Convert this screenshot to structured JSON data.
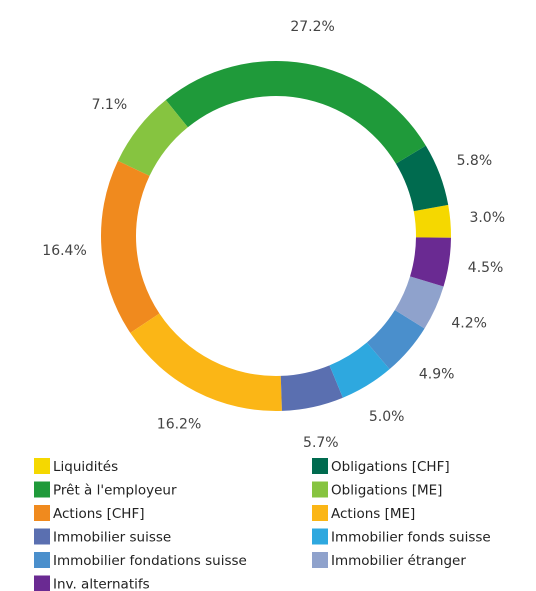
{
  "chart_data": {
    "type": "pie",
    "donut": true,
    "categories": [
      "Liquidités",
      "Obligations [CHF]",
      "Prêt à l'employeur",
      "Obligations [ME]",
      "Actions [CHF]",
      "Actions [ME]",
      "Immobilier suisse",
      "Immobilier fonds suisse",
      "Immobilier fondations suisse",
      "Immobilier étranger",
      "Inv. alternatifs"
    ],
    "values": [
      3.0,
      5.8,
      27.2,
      7.1,
      16.4,
      16.2,
      5.7,
      5.0,
      4.9,
      4.2,
      4.5
    ],
    "value_labels": [
      "3.0%",
      "5.8%",
      "27.2%",
      "7.1%",
      "16.4%",
      "16.2%",
      "5.7%",
      "5.0%",
      "4.9%",
      "4.2%",
      "4.5%"
    ],
    "colors": [
      "#f5d800",
      "#006b4f",
      "#1f9a3a",
      "#86c440",
      "#f08a1e",
      "#fbb616",
      "#5a6fb0",
      "#2ea8df",
      "#4a8fcc",
      "#8fa2cc",
      "#6a2a92"
    ],
    "legend": "bottom"
  }
}
